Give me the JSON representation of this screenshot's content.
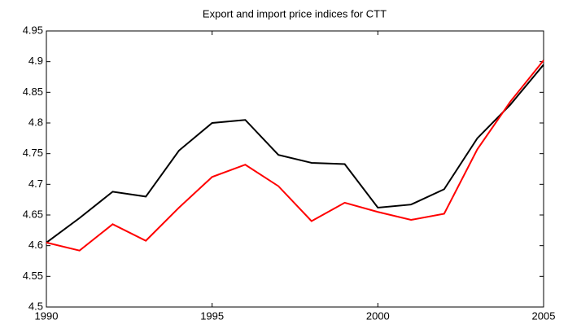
{
  "chart_data": {
    "type": "line",
    "title": "Export and import price indices for CTT",
    "x": [
      1990,
      1991,
      1992,
      1993,
      1994,
      1995,
      1996,
      1997,
      1998,
      1999,
      2000,
      2001,
      2002,
      2003,
      2004,
      2005
    ],
    "series": [
      {
        "color": "#000000",
        "values": [
          4.605,
          4.645,
          4.688,
          4.68,
          4.755,
          4.8,
          4.805,
          4.748,
          4.735,
          4.733,
          4.662,
          4.667,
          4.692,
          4.775,
          4.83,
          4.895
        ]
      },
      {
        "color": "#ff0000",
        "values": [
          4.605,
          4.592,
          4.635,
          4.608,
          4.662,
          4.712,
          4.732,
          4.697,
          4.64,
          4.67,
          4.655,
          4.642,
          4.652,
          4.757,
          4.835,
          4.902
        ]
      }
    ],
    "xlim": [
      1990,
      2005
    ],
    "xticks": [
      1990,
      1995,
      2000,
      2005
    ],
    "ylim": [
      4.5,
      4.95
    ],
    "yticks": [
      4.5,
      4.55,
      4.6,
      4.65,
      4.7,
      4.75,
      4.8,
      4.85,
      4.9,
      4.95
    ]
  }
}
